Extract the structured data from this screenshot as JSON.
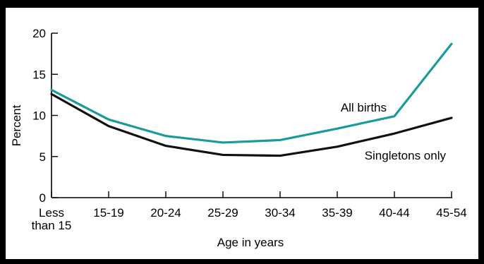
{
  "chart_data": {
    "type": "line",
    "categories": [
      [
        "Less",
        "than 15"
      ],
      [
        "15-19"
      ],
      [
        "20-24"
      ],
      [
        "25-29"
      ],
      [
        "30-34"
      ],
      [
        "35-39"
      ],
      [
        "40-44"
      ],
      [
        "45-54"
      ]
    ],
    "series": [
      {
        "name": "All births",
        "color": "#1a9a9a",
        "values": [
          13.1,
          9.5,
          7.5,
          6.7,
          7.0,
          8.4,
          9.9,
          18.7
        ]
      },
      {
        "name": "Singletons only",
        "color": "#111111",
        "values": [
          12.6,
          8.7,
          6.3,
          5.2,
          5.1,
          6.2,
          7.8,
          9.7
        ]
      }
    ],
    "xlabel": "Age in years",
    "ylabel": "Percent",
    "ylim": [
      0,
      20
    ],
    "yticks": [
      0,
      5,
      10,
      15,
      20
    ],
    "grid": false
  }
}
